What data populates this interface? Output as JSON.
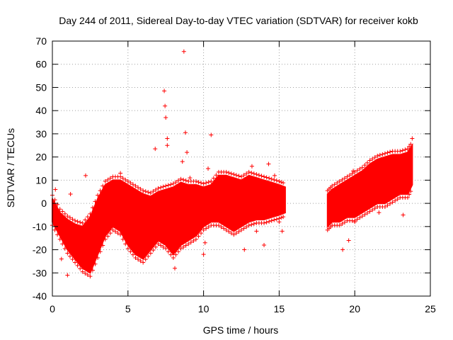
{
  "chart_data": {
    "type": "scatter",
    "title": "Day 244 of 2011, Sidereal Day-to-day VTEC variation (SDTVAR) for receiver kokb",
    "xlabel": "GPS time / hours",
    "ylabel": "SDTVAR / TECUs",
    "xlim": [
      0,
      25
    ],
    "ylim": [
      -40,
      70
    ],
    "x_ticks": [
      0,
      5,
      10,
      15,
      20,
      25
    ],
    "y_ticks": [
      -40,
      -30,
      -20,
      -10,
      0,
      10,
      20,
      30,
      40,
      50,
      60,
      70
    ],
    "grid": true,
    "marker": "+",
    "color": "#ff0000",
    "gap_hours": [
      15.4,
      18.2
    ],
    "envelope": {
      "x": [
        0.0,
        0.5,
        1.0,
        1.5,
        2.0,
        2.5,
        3.0,
        3.5,
        4.0,
        4.5,
        5.0,
        5.5,
        6.0,
        6.5,
        7.0,
        7.5,
        8.0,
        8.5,
        9.0,
        9.5,
        10.0,
        10.5,
        11.0,
        11.5,
        12.0,
        12.5,
        13.0,
        13.5,
        14.0,
        14.5,
        15.0,
        15.4
      ],
      "upper": [
        2,
        -4,
        -7,
        -9,
        -10,
        -6,
        2,
        8,
        10,
        10,
        8,
        6,
        4,
        3,
        5,
        6,
        7,
        9,
        8,
        8,
        7,
        8,
        12,
        12,
        11,
        10,
        12,
        11,
        10,
        9,
        8,
        7
      ],
      "lower": [
        -8,
        -14,
        -20,
        -24,
        -28,
        -30,
        -22,
        -14,
        -10,
        -12,
        -18,
        -22,
        -24,
        -20,
        -16,
        -18,
        -22,
        -18,
        -16,
        -14,
        -10,
        -8,
        -8,
        -10,
        -12,
        -10,
        -8,
        -7,
        -7,
        -6,
        -5,
        -4
      ]
    },
    "envelope_2": {
      "x": [
        18.2,
        18.5,
        19.0,
        19.5,
        20.0,
        20.5,
        21.0,
        21.5,
        22.0,
        22.5,
        23.0,
        23.5,
        23.8
      ],
      "upper": [
        4,
        6,
        8,
        10,
        12,
        14,
        17,
        19,
        20,
        21,
        21,
        22,
        25
      ],
      "lower": [
        -10,
        -8,
        -8,
        -6,
        -6,
        -4,
        -2,
        0,
        0,
        2,
        4,
        4,
        8
      ]
    },
    "outliers": [
      {
        "x": 0.2,
        "y": 6
      },
      {
        "x": 0.6,
        "y": -24
      },
      {
        "x": 1.0,
        "y": -31
      },
      {
        "x": 1.2,
        "y": 4
      },
      {
        "x": 2.2,
        "y": 12
      },
      {
        "x": 4.5,
        "y": 13
      },
      {
        "x": 6.0,
        "y": 4
      },
      {
        "x": 6.8,
        "y": 23.5
      },
      {
        "x": 7.4,
        "y": 48.5
      },
      {
        "x": 7.45,
        "y": 42
      },
      {
        "x": 7.5,
        "y": 37
      },
      {
        "x": 7.6,
        "y": 28
      },
      {
        "x": 7.6,
        "y": 25
      },
      {
        "x": 8.1,
        "y": -28
      },
      {
        "x": 8.6,
        "y": 18
      },
      {
        "x": 8.7,
        "y": 65.5
      },
      {
        "x": 8.8,
        "y": 30.5
      },
      {
        "x": 8.9,
        "y": 22
      },
      {
        "x": 9.1,
        "y": 11
      },
      {
        "x": 9.3,
        "y": -12
      },
      {
        "x": 10.0,
        "y": -22
      },
      {
        "x": 10.1,
        "y": -17
      },
      {
        "x": 10.3,
        "y": 15
      },
      {
        "x": 10.5,
        "y": 29.5
      },
      {
        "x": 11.2,
        "y": 10
      },
      {
        "x": 12.7,
        "y": -20
      },
      {
        "x": 13.2,
        "y": 16
      },
      {
        "x": 13.5,
        "y": -12
      },
      {
        "x": 14.0,
        "y": -18
      },
      {
        "x": 14.3,
        "y": 17
      },
      {
        "x": 14.7,
        "y": 12
      },
      {
        "x": 15.0,
        "y": -8
      },
      {
        "x": 15.2,
        "y": -12
      },
      {
        "x": 19.2,
        "y": -20
      },
      {
        "x": 19.6,
        "y": -16
      },
      {
        "x": 19.9,
        "y": 14
      },
      {
        "x": 20.0,
        "y": -8
      },
      {
        "x": 21.6,
        "y": -4
      },
      {
        "x": 23.2,
        "y": -5
      },
      {
        "x": 23.8,
        "y": 28
      }
    ]
  }
}
